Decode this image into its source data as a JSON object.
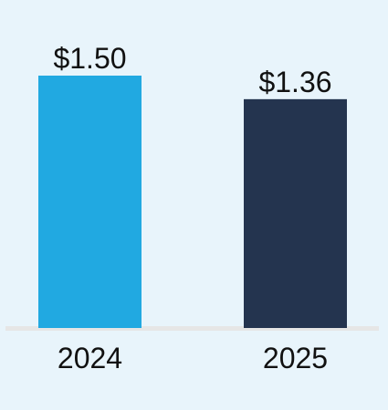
{
  "chart_data": {
    "type": "bar",
    "categories": [
      "2024",
      "2025"
    ],
    "values": [
      1.5,
      1.36
    ],
    "data_labels": [
      "$1.50",
      "$1.36"
    ],
    "bar_colors": [
      "#21a9e1",
      "#24344f"
    ],
    "ylim": [
      0,
      1.5
    ],
    "grid": false,
    "legend": "none",
    "title": "",
    "xlabel": "",
    "ylabel": ""
  },
  "style": {
    "background": "#e8f4fb",
    "baseline_color": "#e6e6e6",
    "text_color": "#111111"
  }
}
